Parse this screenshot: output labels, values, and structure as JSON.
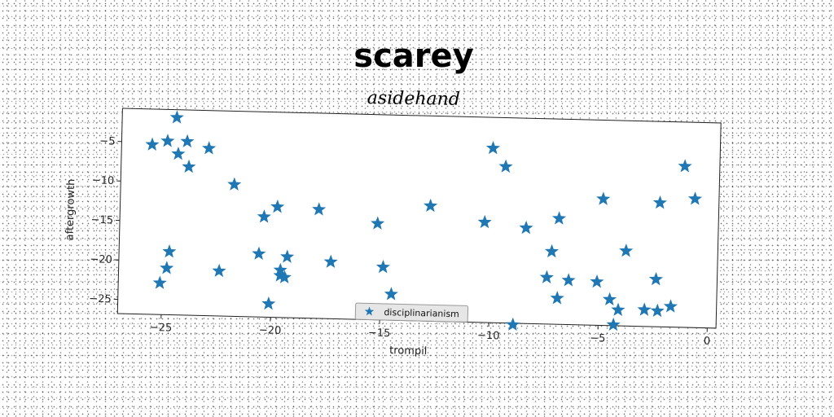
{
  "chart_data": {
    "type": "scatter",
    "title": "scarey",
    "subtitle": "asidehand",
    "xlabel": "trompil",
    "ylabel": "aftergrowth",
    "xlim": [
      -27,
      0.4
    ],
    "ylim": [
      -26.8,
      -0.8
    ],
    "xticks": [
      -25,
      -20,
      -15,
      -10,
      -5,
      0
    ],
    "yticks": [
      -5,
      -10,
      -15,
      -20,
      -25
    ],
    "marker": "star",
    "color": "#1f77b4",
    "grid": false,
    "legend_position": "bottom-center",
    "series": [
      {
        "name": "disciplinarianism",
        "points": [
          [
            -24.5,
            -1.8
          ],
          [
            -25.6,
            -5.3
          ],
          [
            -24.9,
            -4.8
          ],
          [
            -24.0,
            -4.8
          ],
          [
            -24.4,
            -6.4
          ],
          [
            -23.9,
            -8.0
          ],
          [
            -23.0,
            -5.6
          ],
          [
            -21.8,
            -10.1
          ],
          [
            -20.4,
            -14.1
          ],
          [
            -19.8,
            -12.8
          ],
          [
            -17.9,
            -13.0
          ],
          [
            -24.7,
            -18.8
          ],
          [
            -24.8,
            -20.9
          ],
          [
            -25.1,
            -22.8
          ],
          [
            -22.4,
            -21.1
          ],
          [
            -20.6,
            -18.8
          ],
          [
            -19.6,
            -20.8
          ],
          [
            -19.6,
            -21.5
          ],
          [
            -19.3,
            -19.1
          ],
          [
            -19.4,
            -21.7
          ],
          [
            -17.3,
            -19.6
          ],
          [
            -20.1,
            -25.1
          ],
          [
            -15.2,
            -14.6
          ],
          [
            -14.9,
            -20.1
          ],
          [
            -14.5,
            -23.5
          ],
          [
            -12.8,
            -12.2
          ],
          [
            -10.3,
            -14.1
          ],
          [
            -10.0,
            -4.7
          ],
          [
            -9.4,
            -7.0
          ],
          [
            -8.4,
            -14.7
          ],
          [
            -6.9,
            -13.4
          ],
          [
            -7.2,
            -17.6
          ],
          [
            -7.4,
            -20.9
          ],
          [
            -6.4,
            -21.2
          ],
          [
            -6.9,
            -23.5
          ],
          [
            -5.1,
            -21.3
          ],
          [
            -4.9,
            -10.8
          ],
          [
            -8.9,
            -27.0
          ],
          [
            -4.5,
            -23.5
          ],
          [
            -4.1,
            -24.8
          ],
          [
            -3.8,
            -17.3
          ],
          [
            -4.3,
            -26.7
          ],
          [
            -2.9,
            -24.7
          ],
          [
            -2.4,
            -20.8
          ],
          [
            -2.3,
            -24.8
          ],
          [
            -1.7,
            -24.2
          ],
          [
            -2.3,
            -11.1
          ],
          [
            -1.2,
            -6.4
          ],
          [
            -0.7,
            -10.5
          ]
        ]
      }
    ]
  }
}
